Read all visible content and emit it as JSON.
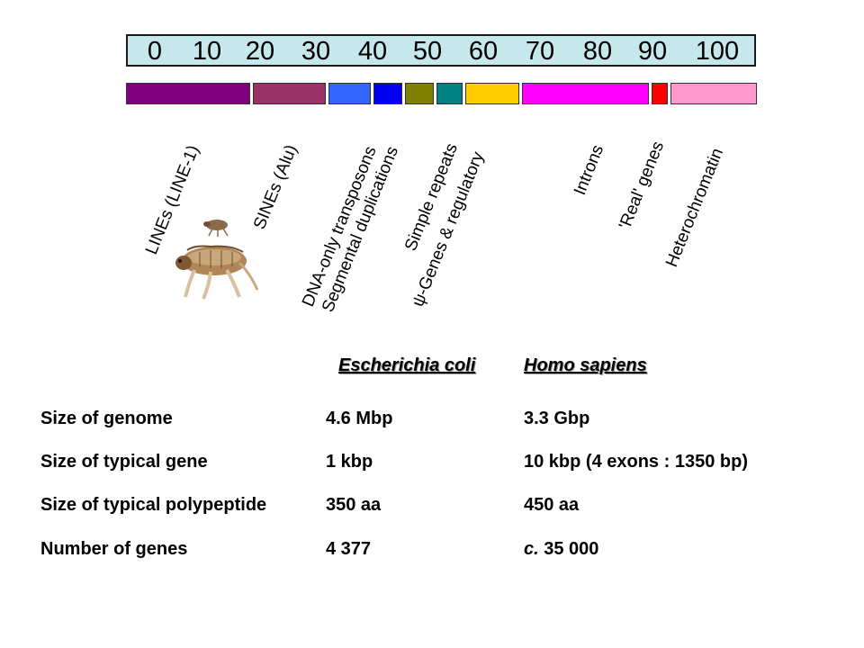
{
  "scale": {
    "ticks": [
      "0",
      "10",
      "20",
      "30",
      "40",
      "50",
      "60",
      "70",
      "80",
      "90",
      "100"
    ]
  },
  "segments": [
    {
      "name": "lines",
      "color": "#800080",
      "start": 0,
      "end": 20
    },
    {
      "name": "sines",
      "color": "#993366",
      "start": 20,
      "end": 32
    },
    {
      "name": "dna-transposons",
      "color": "#3366ff",
      "start": 32,
      "end": 39
    },
    {
      "name": "segmental-duplications",
      "color": "#0000ee",
      "start": 39,
      "end": 44
    },
    {
      "name": "simple-repeats",
      "color": "#808000",
      "start": 44,
      "end": 49
    },
    {
      "name": "psi-genes",
      "color": "#008080",
      "start": 49,
      "end": 53.5
    },
    {
      "name": "regulatory",
      "color": "#ffcc00",
      "start": 53.5,
      "end": 62.5
    },
    {
      "name": "introns",
      "color": "#ff00ff",
      "start": 62.5,
      "end": 83
    },
    {
      "name": "real-genes",
      "color": "#ff0000",
      "start": 83,
      "end": 86
    },
    {
      "name": "heterochromatin",
      "color": "#ff99cc",
      "start": 86,
      "end": 100
    }
  ],
  "labels": {
    "lines": "LINEs (LINE-1)",
    "sines": "SINEs (Alu)",
    "dna_transposons": "DNA-only transposons",
    "segmental_duplications": "Segmental duplications",
    "simple_repeats": "Simple repeats",
    "psi_genes_regulatory": "ψ-Genes & regulatory",
    "introns": "Introns",
    "real_genes": "'Real' genes",
    "heterochromatin": "Heterochromatin"
  },
  "table": {
    "col_ecoli": "Escherichia coli",
    "col_human": "Homo sapiens",
    "rows": [
      {
        "label": "Size of genome",
        "ecoli": "4.6 Mbp",
        "human": "3.3 Gbp"
      },
      {
        "label": "Size of typical gene",
        "ecoli": "1 kbp",
        "human": "10 kbp (4 exons : 1350 bp)"
      },
      {
        "label": "Size of typical polypeptide",
        "ecoli": "350 aa",
        "human": "450 aa"
      },
      {
        "label": "Number of genes",
        "ecoli": "4 377",
        "human_prefix": "c.",
        "human": " 35 000"
      }
    ]
  }
}
